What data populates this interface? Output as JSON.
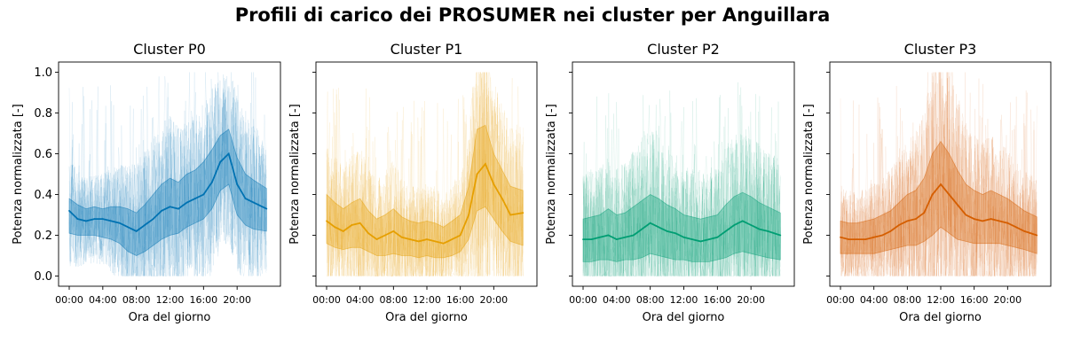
{
  "figure": {
    "title": "Profili di carico dei PROSUMER nei cluster per Anguillara"
  },
  "chart_data": [
    {
      "type": "line",
      "title": "Cluster P0",
      "xlabel": "Ora del giorno",
      "ylabel": "Potenza normalizzata [-]",
      "ylim": [
        0,
        1
      ],
      "xlim_hours": [
        0,
        24
      ],
      "yticks": [
        "0.0",
        "0.2",
        "0.4",
        "0.6",
        "0.8",
        "1.0"
      ],
      "xticks": [
        "00:00",
        "04:00",
        "08:00",
        "12:00",
        "16:00",
        "20:00"
      ],
      "color": "#0072b2",
      "x": [
        0,
        1,
        2,
        3,
        4,
        5,
        6,
        7,
        8,
        9,
        10,
        11,
        12,
        13,
        14,
        15,
        16,
        17,
        18,
        19,
        20,
        21,
        22,
        23.5
      ],
      "mean": [
        0.32,
        0.28,
        0.27,
        0.28,
        0.28,
        0.27,
        0.26,
        0.24,
        0.22,
        0.25,
        0.28,
        0.32,
        0.34,
        0.33,
        0.36,
        0.38,
        0.4,
        0.46,
        0.56,
        0.6,
        0.45,
        0.38,
        0.36,
        0.33
      ],
      "band_low": [
        0.21,
        0.2,
        0.2,
        0.2,
        0.19,
        0.18,
        0.16,
        0.12,
        0.1,
        0.12,
        0.15,
        0.18,
        0.2,
        0.21,
        0.24,
        0.26,
        0.28,
        0.33,
        0.42,
        0.45,
        0.3,
        0.25,
        0.23,
        0.22
      ],
      "band_high": [
        0.38,
        0.35,
        0.33,
        0.34,
        0.33,
        0.34,
        0.34,
        0.33,
        0.31,
        0.35,
        0.4,
        0.45,
        0.48,
        0.46,
        0.5,
        0.52,
        0.56,
        0.62,
        0.69,
        0.72,
        0.58,
        0.5,
        0.47,
        0.43
      ],
      "grid": false
    },
    {
      "type": "line",
      "title": "Cluster P1",
      "xlabel": "Ora del giorno",
      "ylabel": "Potenza normalizzata [-]",
      "ylim": [
        0,
        1
      ],
      "xlim_hours": [
        0,
        24
      ],
      "yticks": [
        "",
        "",
        "",
        "",
        "",
        ""
      ],
      "xticks": [
        "00:00",
        "04:00",
        "08:00",
        "12:00",
        "16:00",
        "20:00"
      ],
      "color": "#e69f00",
      "x": [
        0,
        1,
        2,
        3,
        4,
        5,
        6,
        7,
        8,
        9,
        10,
        11,
        12,
        13,
        14,
        15,
        16,
        17,
        18,
        19,
        20,
        21,
        22,
        23.5
      ],
      "mean": [
        0.27,
        0.24,
        0.22,
        0.25,
        0.26,
        0.21,
        0.18,
        0.2,
        0.22,
        0.19,
        0.18,
        0.17,
        0.18,
        0.17,
        0.16,
        0.18,
        0.2,
        0.3,
        0.5,
        0.55,
        0.45,
        0.38,
        0.3,
        0.31
      ],
      "band_low": [
        0.16,
        0.14,
        0.13,
        0.14,
        0.14,
        0.12,
        0.1,
        0.1,
        0.11,
        0.1,
        0.1,
        0.09,
        0.1,
        0.09,
        0.09,
        0.1,
        0.12,
        0.18,
        0.32,
        0.34,
        0.28,
        0.22,
        0.17,
        0.15
      ],
      "band_high": [
        0.4,
        0.36,
        0.33,
        0.36,
        0.38,
        0.32,
        0.28,
        0.3,
        0.33,
        0.29,
        0.27,
        0.26,
        0.27,
        0.26,
        0.24,
        0.27,
        0.3,
        0.44,
        0.72,
        0.74,
        0.6,
        0.52,
        0.44,
        0.42
      ],
      "grid": false
    },
    {
      "type": "line",
      "title": "Cluster P2",
      "xlabel": "Ora del giorno",
      "ylabel": "Potenza normalizzata [-]",
      "ylim": [
        0,
        1
      ],
      "xlim_hours": [
        0,
        24
      ],
      "yticks": [
        "",
        "",
        "",
        "",
        "",
        ""
      ],
      "xticks": [
        "00:00",
        "04:00",
        "08:00",
        "12:00",
        "16:00",
        "20:00"
      ],
      "color": "#009e73",
      "x": [
        0,
        1,
        2,
        3,
        4,
        5,
        6,
        7,
        8,
        9,
        10,
        11,
        12,
        13,
        14,
        15,
        16,
        17,
        18,
        19,
        20,
        21,
        22,
        23.5
      ],
      "mean": [
        0.18,
        0.18,
        0.19,
        0.2,
        0.18,
        0.19,
        0.2,
        0.23,
        0.26,
        0.24,
        0.22,
        0.21,
        0.19,
        0.18,
        0.17,
        0.18,
        0.19,
        0.22,
        0.25,
        0.27,
        0.25,
        0.23,
        0.22,
        0.2
      ],
      "band_low": [
        0.07,
        0.07,
        0.08,
        0.08,
        0.07,
        0.08,
        0.08,
        0.09,
        0.11,
        0.1,
        0.09,
        0.08,
        0.08,
        0.07,
        0.07,
        0.07,
        0.08,
        0.09,
        0.11,
        0.12,
        0.11,
        0.1,
        0.09,
        0.08
      ],
      "band_high": [
        0.28,
        0.29,
        0.3,
        0.33,
        0.3,
        0.31,
        0.34,
        0.37,
        0.4,
        0.38,
        0.35,
        0.33,
        0.3,
        0.29,
        0.28,
        0.29,
        0.3,
        0.35,
        0.39,
        0.41,
        0.39,
        0.36,
        0.34,
        0.31
      ],
      "grid": false
    },
    {
      "type": "line",
      "title": "Cluster P3",
      "xlabel": "Ora del giorno",
      "ylabel": "Potenza normalizzata [-]",
      "ylim": [
        0,
        1
      ],
      "xlim_hours": [
        0,
        24
      ],
      "yticks": [
        "",
        "",
        "",
        "",
        "",
        ""
      ],
      "xticks": [
        "00:00",
        "04:00",
        "08:00",
        "12:00",
        "16:00",
        "20:00"
      ],
      "color": "#d55e00",
      "x": [
        0,
        1,
        2,
        3,
        4,
        5,
        6,
        7,
        8,
        9,
        10,
        11,
        12,
        13,
        14,
        15,
        16,
        17,
        18,
        19,
        20,
        21,
        22,
        23.5
      ],
      "mean": [
        0.19,
        0.18,
        0.18,
        0.18,
        0.19,
        0.2,
        0.22,
        0.25,
        0.27,
        0.28,
        0.31,
        0.4,
        0.45,
        0.4,
        0.35,
        0.3,
        0.28,
        0.27,
        0.28,
        0.27,
        0.26,
        0.24,
        0.22,
        0.2
      ],
      "band_low": [
        0.11,
        0.11,
        0.11,
        0.11,
        0.11,
        0.12,
        0.13,
        0.14,
        0.15,
        0.15,
        0.17,
        0.2,
        0.24,
        0.21,
        0.18,
        0.17,
        0.16,
        0.16,
        0.16,
        0.16,
        0.15,
        0.14,
        0.13,
        0.11
      ],
      "band_high": [
        0.27,
        0.26,
        0.26,
        0.27,
        0.28,
        0.3,
        0.32,
        0.36,
        0.4,
        0.42,
        0.48,
        0.6,
        0.66,
        0.6,
        0.52,
        0.45,
        0.42,
        0.4,
        0.42,
        0.4,
        0.38,
        0.35,
        0.32,
        0.29
      ],
      "grid": false
    }
  ]
}
